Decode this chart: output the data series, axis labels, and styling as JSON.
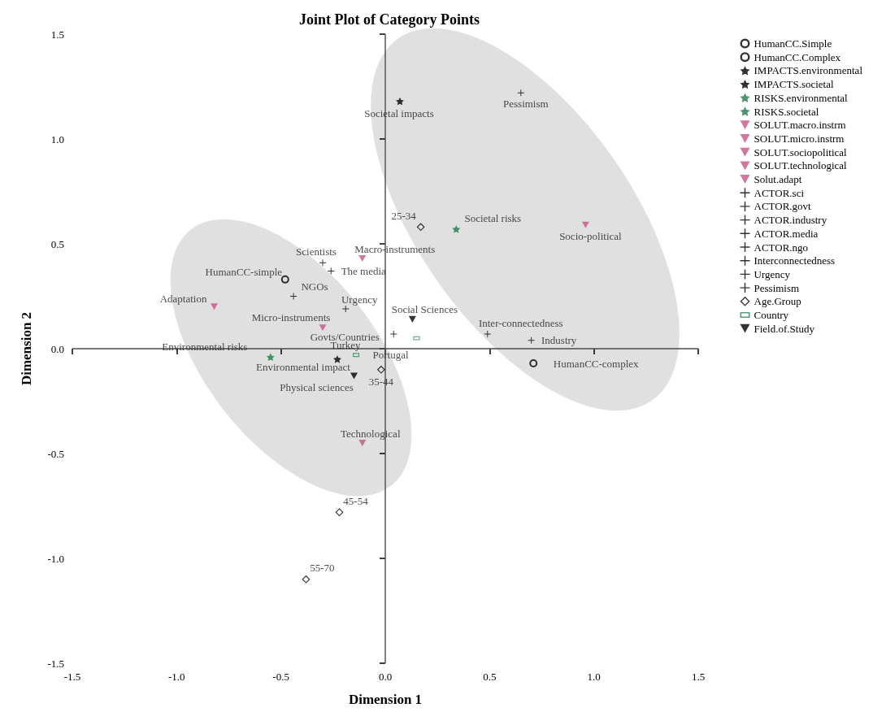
{
  "chart_data": {
    "type": "scatter",
    "title": "Joint Plot of Category Points",
    "xlabel": "Dimension 1",
    "ylabel": "Dimension 2",
    "xlim": [
      -1.5,
      1.5
    ],
    "ylim": [
      -1.5,
      1.5
    ],
    "xticks": [
      -1.5,
      {
        "value": -1,
        "label": "-1.0"
      },
      -0.5,
      {
        "value": 0,
        "label": "0.0"
      },
      0.5,
      {
        "value": 1,
        "label": "1.0"
      },
      1.5
    ],
    "yticks": [
      -1.5,
      {
        "value": -1,
        "label": "-1.0"
      },
      -0.5,
      {
        "value": 0,
        "label": "0.0"
      },
      0.5,
      {
        "value": 1,
        "label": "1.0"
      },
      1.5
    ],
    "legend": "top right",
    "ref_lines": [
      {
        "axis": "x",
        "value": 0,
        "label": null,
        "color": "#555555"
      },
      {
        "axis": "y",
        "value": 0,
        "label": null,
        "color": "#4a4a4a"
      }
    ],
    "series": [
      {
        "name": "HumanCC.Simple",
        "color": "#000000",
        "marker": "circle",
        "x": [
          -0.48
        ],
        "values": [
          0.33
        ]
      },
      {
        "name": "HumanCC.Complex",
        "color": "#000000",
        "marker": "circle",
        "x": [
          0.71
        ],
        "values": [
          -0.07
        ]
      },
      {
        "name": "IMPACTS.environmental",
        "color": "#000000",
        "marker": "star",
        "x": [
          -0.23
        ],
        "values": [
          -0.05
        ]
      },
      {
        "name": "IMPACTS.societal",
        "color": "#000000",
        "marker": "star",
        "x": [
          0.07
        ],
        "values": [
          1.18
        ]
      },
      {
        "name": "RISKS.environmental",
        "color": "#1a7a4a",
        "marker": "star",
        "x": [
          -0.55
        ],
        "values": [
          -0.04
        ]
      },
      {
        "name": "RISKS.societal",
        "color": "#1a7a4a",
        "marker": "star",
        "x": [
          0.34
        ],
        "values": [
          0.57
        ]
      },
      {
        "name": "SOLUT.macro.instrm",
        "color": "#c8528a",
        "marker": "triangle",
        "x": [
          -0.11
        ],
        "values": [
          0.43
        ]
      },
      {
        "name": "SOLUT.micro.instrm",
        "color": "#c8528a",
        "marker": "triangle",
        "x": [
          -0.3
        ],
        "values": [
          0.1
        ]
      },
      {
        "name": "SOLUT.sociopolitical",
        "color": "#c8528a",
        "marker": "triangle",
        "x": [
          0.96
        ],
        "values": [
          0.59
        ]
      },
      {
        "name": "SOLUT.technological",
        "color": "#c8528a",
        "marker": "triangle",
        "x": [
          -0.11
        ],
        "values": [
          -0.45
        ]
      },
      {
        "name": "Solut.adapt",
        "color": "#c8528a",
        "marker": "triangle",
        "x": [
          -0.82
        ],
        "values": [
          0.2
        ]
      },
      {
        "name": "ACTOR.sci",
        "color": "#000000",
        "marker": "cross",
        "x": [
          -0.3
        ],
        "values": [
          0.41
        ]
      },
      {
        "name": "ACTOR.govt",
        "color": "#000000",
        "marker": "cross",
        "x": [
          0.04
        ],
        "values": [
          0.07
        ]
      },
      {
        "name": "ACTOR.industry",
        "color": "#000000",
        "marker": "cross",
        "x": [
          0.7
        ],
        "values": [
          0.04
        ]
      },
      {
        "name": "ACTOR.media",
        "color": "#000000",
        "marker": "cross",
        "x": [
          -0.26
        ],
        "values": [
          0.37
        ]
      },
      {
        "name": "ACTOR.ngo",
        "color": "#000000",
        "marker": "cross",
        "x": [
          -0.44
        ],
        "values": [
          0.25
        ]
      },
      {
        "name": "Interconnectedness",
        "color": "#000000",
        "marker": "cross",
        "x": [
          0.49
        ],
        "values": [
          0.07
        ]
      },
      {
        "name": "Urgency",
        "color": "#000000",
        "marker": "cross",
        "x": [
          -0.19
        ],
        "values": [
          0.19
        ]
      },
      {
        "name": "Pessimism",
        "color": "#000000",
        "marker": "cross",
        "x": [
          0.65
        ],
        "values": [
          1.22
        ]
      },
      {
        "name": "Age.Group",
        "color": "#000000",
        "marker": "diamond",
        "x": [
          0.17,
          -0.02,
          -0.22,
          -0.38
        ],
        "values": [
          0.58,
          -0.1,
          -0.78,
          -1.1
        ]
      },
      {
        "name": "Country",
        "color": "#2e8b57",
        "marker": "square",
        "x": [
          -0.14,
          0.15
        ],
        "values": [
          -0.03,
          0.05
        ]
      },
      {
        "name": "Field.of.Study",
        "color": "#000000",
        "marker": "triangle",
        "x": [
          0.13,
          -0.15
        ],
        "values": [
          0.14,
          -0.13
        ]
      }
    ],
    "annotations": [
      {
        "text": "HumanCC-simple",
        "x": -0.48,
        "y": 0.33
      },
      {
        "text": "HumanCC-complex",
        "x": 0.71,
        "y": -0.07
      },
      {
        "text": "Environmental impact",
        "x": -0.23,
        "y": -0.05
      },
      {
        "text": "Societal impacts",
        "x": 0.07,
        "y": 1.18
      },
      {
        "text": "Environmental risks",
        "x": -0.55,
        "y": -0.04
      },
      {
        "text": "Societal risks",
        "x": 0.34,
        "y": 0.57
      },
      {
        "text": "Macro-instruments",
        "x": -0.11,
        "y": 0.43
      },
      {
        "text": "Micro-instruments",
        "x": -0.3,
        "y": 0.1
      },
      {
        "text": "Socio-political",
        "x": 0.96,
        "y": 0.59
      },
      {
        "text": "Technological",
        "x": -0.11,
        "y": -0.45
      },
      {
        "text": "Adaptation",
        "x": -0.82,
        "y": 0.2
      },
      {
        "text": "Scientists",
        "x": -0.3,
        "y": 0.41
      },
      {
        "text": "Govts/Countries",
        "x": 0.04,
        "y": 0.07
      },
      {
        "text": "Industry",
        "x": 0.7,
        "y": 0.04
      },
      {
        "text": "The media",
        "x": -0.26,
        "y": 0.37
      },
      {
        "text": "NGOs",
        "x": -0.44,
        "y": 0.25
      },
      {
        "text": "Inter-connectedness",
        "x": 0.49,
        "y": 0.07
      },
      {
        "text": "Urgency",
        "x": -0.19,
        "y": 0.19
      },
      {
        "text": "Pessimism",
        "x": 0.65,
        "y": 1.22
      },
      {
        "text": "25-34",
        "x": 0.17,
        "y": 0.58
      },
      {
        "text": "35-44",
        "x": -0.02,
        "y": -0.1
      },
      {
        "text": "45-54",
        "x": -0.22,
        "y": -0.78
      },
      {
        "text": "55-70",
        "x": -0.38,
        "y": -1.1
      },
      {
        "text": "Turkey",
        "x": -0.14,
        "y": -0.03
      },
      {
        "text": "Portugal",
        "x": 0.15,
        "y": 0.05
      },
      {
        "text": "Social Sciences",
        "x": 0.13,
        "y": 0.14
      },
      {
        "text": "Physical sciences",
        "x": -0.15,
        "y": -0.13
      }
    ]
  }
}
